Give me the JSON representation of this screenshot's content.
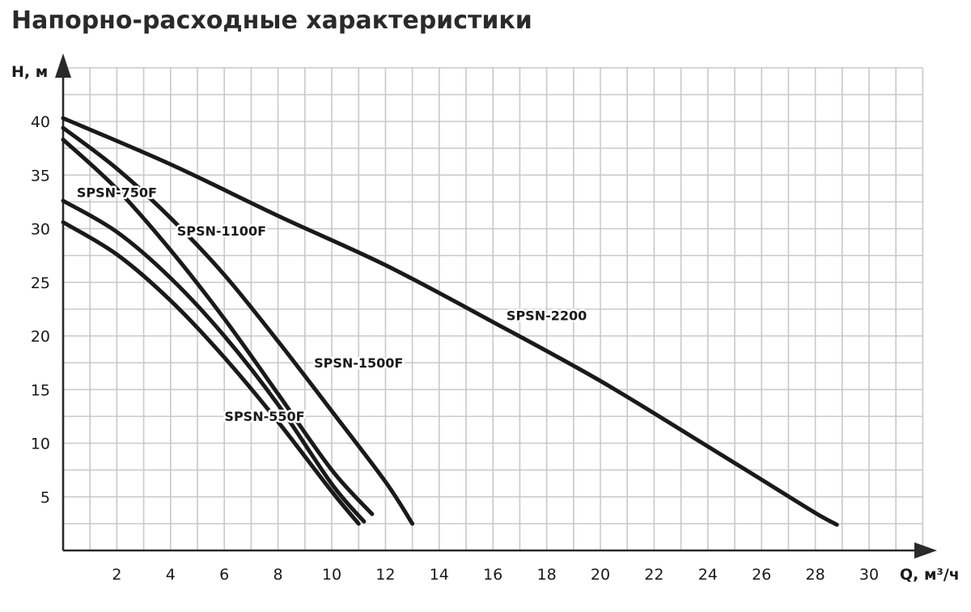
{
  "chart_data": {
    "type": "line",
    "title": "Напорно-расходные характеристики",
    "xlabel": "Q, м³/ч",
    "ylabel": "H, м",
    "xlim": [
      0,
      32
    ],
    "ylim": [
      0,
      45
    ],
    "x_ticks": [
      2,
      4,
      6,
      8,
      10,
      12,
      14,
      16,
      18,
      20,
      22,
      24,
      26,
      28,
      30
    ],
    "y_ticks": [
      5,
      10,
      15,
      20,
      25,
      30,
      35,
      40
    ],
    "grid": true,
    "legend": "inline labels",
    "series": [
      {
        "name": "SPSN-550F",
        "x": [
          0,
          2,
          4,
          6,
          8,
          10,
          11
        ],
        "y": [
          30.6,
          27.6,
          23.3,
          18.0,
          12.0,
          5.5,
          2.5
        ]
      },
      {
        "name": "SPSN-750F",
        "x": [
          0,
          2,
          4,
          6,
          8,
          10,
          11.2
        ],
        "y": [
          32.6,
          29.7,
          25.4,
          20.0,
          13.6,
          6.2,
          2.7
        ]
      },
      {
        "name": "SPSN-1100F",
        "x": [
          0,
          2,
          4,
          6,
          8,
          10,
          11.5
        ],
        "y": [
          38.3,
          33.7,
          28.0,
          21.6,
          14.6,
          7.5,
          3.4
        ]
      },
      {
        "name": "SPSN-1500F",
        "x": [
          0,
          2,
          4,
          6,
          8,
          10,
          12,
          13
        ],
        "y": [
          39.4,
          35.6,
          31.0,
          25.7,
          19.5,
          13.0,
          6.4,
          2.5
        ]
      },
      {
        "name": "SPSN-2200",
        "x": [
          0,
          4,
          8,
          12,
          16,
          20,
          24,
          26,
          28,
          28.8
        ],
        "y": [
          40.3,
          36.0,
          31.2,
          26.6,
          21.3,
          15.8,
          9.7,
          6.6,
          3.5,
          2.4
        ]
      }
    ],
    "annotations": [
      {
        "text": "SPSN-750F",
        "x": 2.0,
        "y": 33.3
      },
      {
        "text": "SPSN-1100F",
        "x": 5.9,
        "y": 29.7
      },
      {
        "text": "SPSN-1500F",
        "x": 11.0,
        "y": 17.4
      },
      {
        "text": "SPSN-550F",
        "x": 7.5,
        "y": 12.4
      },
      {
        "text": "SPSN-2200",
        "x": 18.0,
        "y": 21.8
      }
    ]
  }
}
